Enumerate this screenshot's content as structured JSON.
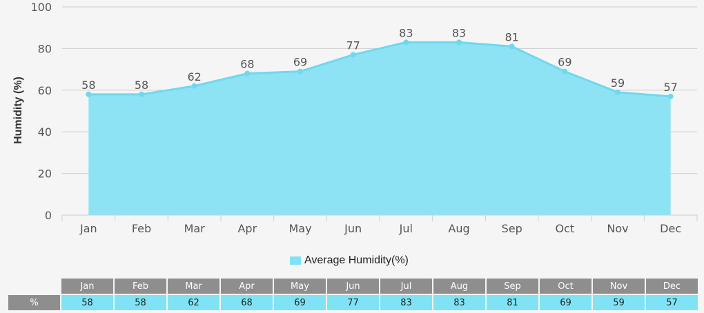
{
  "chart_data": {
    "type": "area",
    "categories": [
      "Jan",
      "Feb",
      "Mar",
      "Apr",
      "May",
      "Jun",
      "Jul",
      "Aug",
      "Sep",
      "Oct",
      "Nov",
      "Dec"
    ],
    "series": [
      {
        "name": "Average Humidity(%)",
        "values": [
          58,
          58,
          62,
          68,
          69,
          77,
          83,
          83,
          81,
          69,
          59,
          57
        ]
      }
    ],
    "title": "",
    "xlabel": "",
    "ylabel": "Humidity (%)",
    "ylim": [
      0,
      100
    ],
    "yticks": [
      0,
      20,
      40,
      60,
      80,
      100
    ],
    "grid": true,
    "data_labels": true,
    "legend_position": "bottom-center",
    "colors": {
      "fill": "#8de3f3",
      "line": "#6fd8ef",
      "grid": "#cccccc",
      "table_header": "#8e8e8e",
      "table_value_bg": "#7fe3f5"
    }
  },
  "table": {
    "row_label": "%"
  }
}
